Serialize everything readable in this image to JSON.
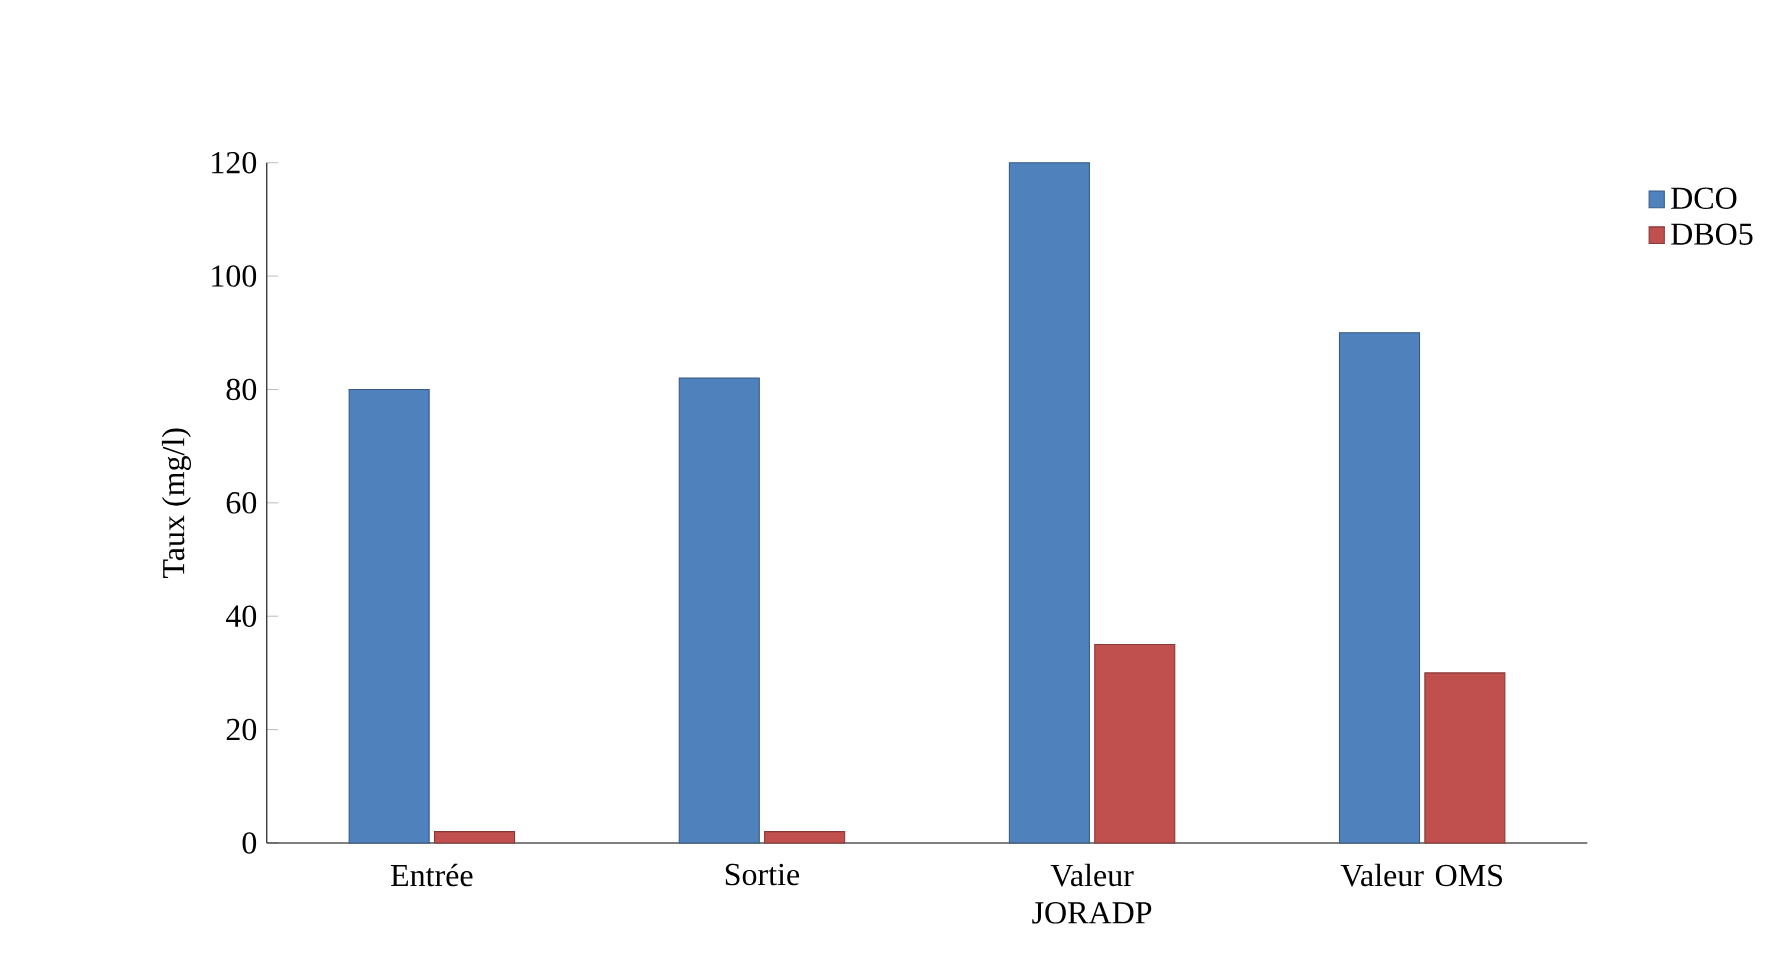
{
  "chart_data": {
    "type": "bar",
    "ylabel": "Taux (mg/l)",
    "categories": [
      "Entrée",
      "Sortie",
      "Valeur JORADP",
      "Valeur OMS"
    ],
    "series": [
      {
        "name": "DCO",
        "color": "#4f81bd",
        "values": [
          80,
          82,
          120,
          90
        ]
      },
      {
        "name": "DBO5",
        "color": "#c0504d",
        "values": [
          2,
          2,
          35,
          30
        ]
      }
    ],
    "ylim": [
      0,
      120
    ],
    "yticks": [
      0,
      20,
      40,
      60,
      80,
      100,
      120
    ],
    "grid": false,
    "legend": "top right"
  }
}
